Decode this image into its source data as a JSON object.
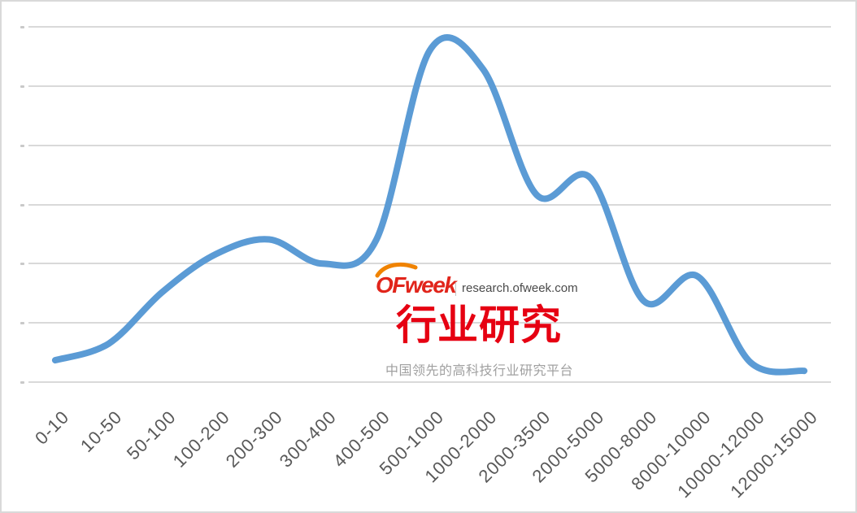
{
  "watermark": {
    "logo_text": "OFweek",
    "domain": "research.ofweek.com",
    "title_cn": "行业研究",
    "subtitle_cn": "中国领先的高科技行业研究平台",
    "logo_color": "#E1251B",
    "swoosh_color": "#F08300",
    "title_color": "#E60012",
    "subtitle_color": "#A0A0A0",
    "domain_color": "#4A4A4A"
  },
  "chart_data": {
    "type": "line",
    "smooth": true,
    "categories": [
      "0-10",
      "10-50",
      "50-100",
      "100-200",
      "200-300",
      "300-400",
      "400-500",
      "500-1000",
      "1000-2000",
      "2000-3500",
      "2000-5000",
      "5000-8000",
      "8000-10000",
      "10000-12000",
      "12000-15000"
    ],
    "values": [
      0.37,
      0.65,
      1.52,
      2.16,
      2.41,
      2.0,
      2.4,
      5.6,
      5.28,
      3.16,
      3.45,
      1.37,
      1.79,
      0.33,
      0.19
    ],
    "y_units": "gridline intervals (y-axis tick labels present but illegibly small)",
    "ylim": [
      0,
      6
    ],
    "gridline_count": 7,
    "grid": true,
    "legend": false,
    "line_color": "#5B9BD5",
    "gridline_color": "#D9D9D9",
    "axis_label_color": "#595959"
  }
}
